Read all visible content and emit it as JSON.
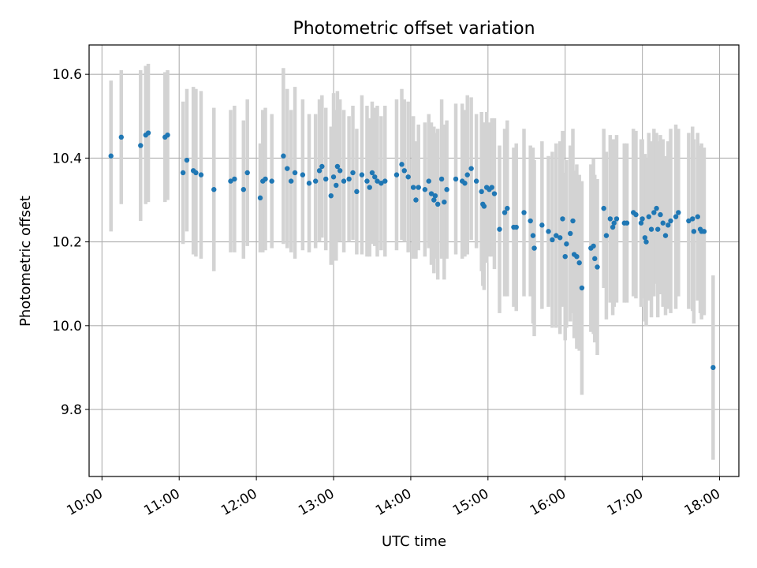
{
  "chart_data": {
    "type": "scatter",
    "title": "Photometric offset variation",
    "xlabel": "UTC time",
    "ylabel": "Photometric offset",
    "x_ticks": [
      "10:00",
      "11:00",
      "12:00",
      "13:00",
      "14:00",
      "15:00",
      "16:00",
      "17:00",
      "18:00"
    ],
    "y_ticks": [
      "9.8",
      "10.0",
      "10.2",
      "10.4",
      "10.6"
    ],
    "xlim": [
      "09:50",
      "18:15"
    ],
    "ylim": [
      9.64,
      10.67
    ],
    "grid": true,
    "colors": {
      "point": "#1f77b4",
      "errorbar": "#d3d3d3",
      "grid": "#b0b0b0"
    },
    "points": [
      [
        "10:07",
        10.405,
        0.18
      ],
      [
        "10:15",
        10.45,
        0.16
      ],
      [
        "10:30",
        10.43,
        0.18
      ],
      [
        "10:34",
        10.455,
        0.165
      ],
      [
        "10:36",
        10.46,
        0.165
      ],
      [
        "10:49",
        10.45,
        0.155
      ],
      [
        "10:51",
        10.455,
        0.155
      ],
      [
        "11:03",
        10.365,
        0.17
      ],
      [
        "11:06",
        10.395,
        0.17
      ],
      [
        "11:11",
        10.37,
        0.2
      ],
      [
        "11:13",
        10.365,
        0.2
      ],
      [
        "11:17",
        10.36,
        0.2
      ],
      [
        "11:27",
        10.325,
        0.195
      ],
      [
        "11:40",
        10.345,
        0.17
      ],
      [
        "11:43",
        10.35,
        0.175
      ],
      [
        "11:50",
        10.325,
        0.165
      ],
      [
        "11:53",
        10.365,
        0.175
      ],
      [
        "12:03",
        10.305,
        0.13
      ],
      [
        "12:05",
        10.345,
        0.17
      ],
      [
        "12:07",
        10.35,
        0.17
      ],
      [
        "12:12",
        10.345,
        0.16
      ],
      [
        "12:21",
        10.405,
        0.21
      ],
      [
        "12:24",
        10.375,
        0.19
      ],
      [
        "12:27",
        10.345,
        0.17
      ],
      [
        "12:30",
        10.365,
        0.205
      ],
      [
        "12:36",
        10.36,
        0.18
      ],
      [
        "12:41",
        10.34,
        0.165
      ],
      [
        "12:46",
        10.345,
        0.16
      ],
      [
        "12:49",
        10.37,
        0.17
      ],
      [
        "12:51",
        10.38,
        0.17
      ],
      [
        "12:54",
        10.35,
        0.17
      ],
      [
        "12:58",
        10.31,
        0.165
      ],
      [
        "13:00",
        10.355,
        0.2
      ],
      [
        "13:02",
        10.335,
        0.18
      ],
      [
        "13:03",
        10.38,
        0.18
      ],
      [
        "13:05",
        10.37,
        0.17
      ],
      [
        "13:08",
        10.345,
        0.17
      ],
      [
        "13:12",
        10.35,
        0.15
      ],
      [
        "13:15",
        10.365,
        0.16
      ],
      [
        "13:18",
        10.32,
        0.15
      ],
      [
        "13:22",
        10.36,
        0.19
      ],
      [
        "13:26",
        10.345,
        0.18
      ],
      [
        "13:28",
        10.33,
        0.165
      ],
      [
        "13:30",
        10.365,
        0.17
      ],
      [
        "13:32",
        10.355,
        0.165
      ],
      [
        "13:34",
        10.345,
        0.18
      ],
      [
        "13:37",
        10.34,
        0.16
      ],
      [
        "13:40",
        10.345,
        0.18
      ],
      [
        "13:49",
        10.36,
        0.18
      ],
      [
        "13:53",
        10.385,
        0.18
      ],
      [
        "13:55",
        10.37,
        0.17
      ],
      [
        "13:58",
        10.355,
        0.18
      ],
      [
        "14:02",
        10.33,
        0.17
      ],
      [
        "14:04",
        10.3,
        0.14
      ],
      [
        "14:06",
        10.33,
        0.15
      ],
      [
        "14:11",
        10.325,
        0.16
      ],
      [
        "14:14",
        10.345,
        0.16
      ],
      [
        "14:16",
        10.315,
        0.17
      ],
      [
        "14:18",
        10.3,
        0.175
      ],
      [
        "14:19",
        10.31,
        0.15
      ],
      [
        "14:21",
        10.29,
        0.18
      ],
      [
        "14:24",
        10.35,
        0.19
      ],
      [
        "14:26",
        10.295,
        0.185
      ],
      [
        "14:28",
        10.325,
        0.165
      ],
      [
        "14:35",
        10.35,
        0.18
      ],
      [
        "14:40",
        10.345,
        0.185
      ],
      [
        "14:42",
        10.34,
        0.175
      ],
      [
        "14:44",
        10.36,
        0.19
      ],
      [
        "14:47",
        10.375,
        0.17
      ],
      [
        "14:51",
        10.345,
        0.16
      ],
      [
        "14:55",
        10.32,
        0.19
      ],
      [
        "14:56",
        10.29,
        0.195
      ],
      [
        "14:57",
        10.285,
        0.2
      ],
      [
        "14:59",
        10.33,
        0.18
      ],
      [
        "15:01",
        10.325,
        0.16
      ],
      [
        "15:03",
        10.33,
        0.165
      ],
      [
        "15:05",
        10.315,
        0.18
      ],
      [
        "15:09",
        10.23,
        0.2
      ],
      [
        "15:13",
        10.27,
        0.2
      ],
      [
        "15:15",
        10.28,
        0.21
      ],
      [
        "15:20",
        10.235,
        0.19
      ],
      [
        "15:22",
        10.235,
        0.2
      ],
      [
        "15:28",
        10.27,
        0.2
      ],
      [
        "15:33",
        10.25,
        0.18
      ],
      [
        "15:35",
        10.215,
        0.21
      ],
      [
        "15:36",
        10.185,
        0.21
      ],
      [
        "15:42",
        10.24,
        0.2
      ],
      [
        "15:47",
        10.225,
        0.18
      ],
      [
        "15:50",
        10.205,
        0.21
      ],
      [
        "15:53",
        10.215,
        0.22
      ],
      [
        "15:56",
        10.21,
        0.23
      ],
      [
        "15:58",
        10.255,
        0.21
      ],
      [
        "16:00",
        10.165,
        0.2
      ],
      [
        "16:01",
        10.195,
        0.2
      ],
      [
        "16:04",
        10.22,
        0.21
      ],
      [
        "16:06",
        10.25,
        0.22
      ],
      [
        "16:07",
        10.17,
        0.2
      ],
      [
        "16:09",
        10.165,
        0.22
      ],
      [
        "16:11",
        10.15,
        0.21
      ],
      [
        "16:13",
        10.09,
        0.255
      ],
      [
        "16:20",
        10.185,
        0.2
      ],
      [
        "16:22",
        10.19,
        0.21
      ],
      [
        "16:23",
        10.16,
        0.2
      ],
      [
        "16:25",
        10.14,
        0.21
      ],
      [
        "16:30",
        10.28,
        0.19
      ],
      [
        "16:32",
        10.215,
        0.2
      ],
      [
        "16:35",
        10.255,
        0.2
      ],
      [
        "16:37",
        10.235,
        0.21
      ],
      [
        "16:38",
        10.245,
        0.2
      ],
      [
        "16:40",
        10.255,
        0.2
      ],
      [
        "16:46",
        10.245,
        0.19
      ],
      [
        "16:48",
        10.245,
        0.19
      ],
      [
        "16:53",
        10.27,
        0.2
      ],
      [
        "16:55",
        10.265,
        0.2
      ],
      [
        "16:59",
        10.245,
        0.2
      ],
      [
        "17:00",
        10.255,
        0.19
      ],
      [
        "17:02",
        10.21,
        0.2
      ],
      [
        "17:03",
        10.2,
        0.2
      ],
      [
        "17:05",
        10.26,
        0.2
      ],
      [
        "17:07",
        10.23,
        0.21
      ],
      [
        "17:09",
        10.27,
        0.2
      ],
      [
        "17:11",
        10.28,
        0.18
      ],
      [
        "17:12",
        10.23,
        0.21
      ],
      [
        "17:14",
        10.265,
        0.19
      ],
      [
        "17:16",
        10.245,
        0.2
      ],
      [
        "17:18",
        10.215,
        0.19
      ],
      [
        "17:20",
        10.24,
        0.2
      ],
      [
        "17:22",
        10.25,
        0.22
      ],
      [
        "17:26",
        10.26,
        0.22
      ],
      [
        "17:28",
        10.27,
        0.2
      ],
      [
        "17:36",
        10.25,
        0.21
      ],
      [
        "17:39",
        10.255,
        0.22
      ],
      [
        "17:40",
        10.225,
        0.22
      ],
      [
        "17:43",
        10.26,
        0.2
      ],
      [
        "17:45",
        10.23,
        0.2
      ],
      [
        "17:46",
        10.225,
        0.21
      ],
      [
        "17:48",
        10.225,
        0.2
      ],
      [
        "17:55",
        9.9,
        0.22
      ]
    ]
  }
}
